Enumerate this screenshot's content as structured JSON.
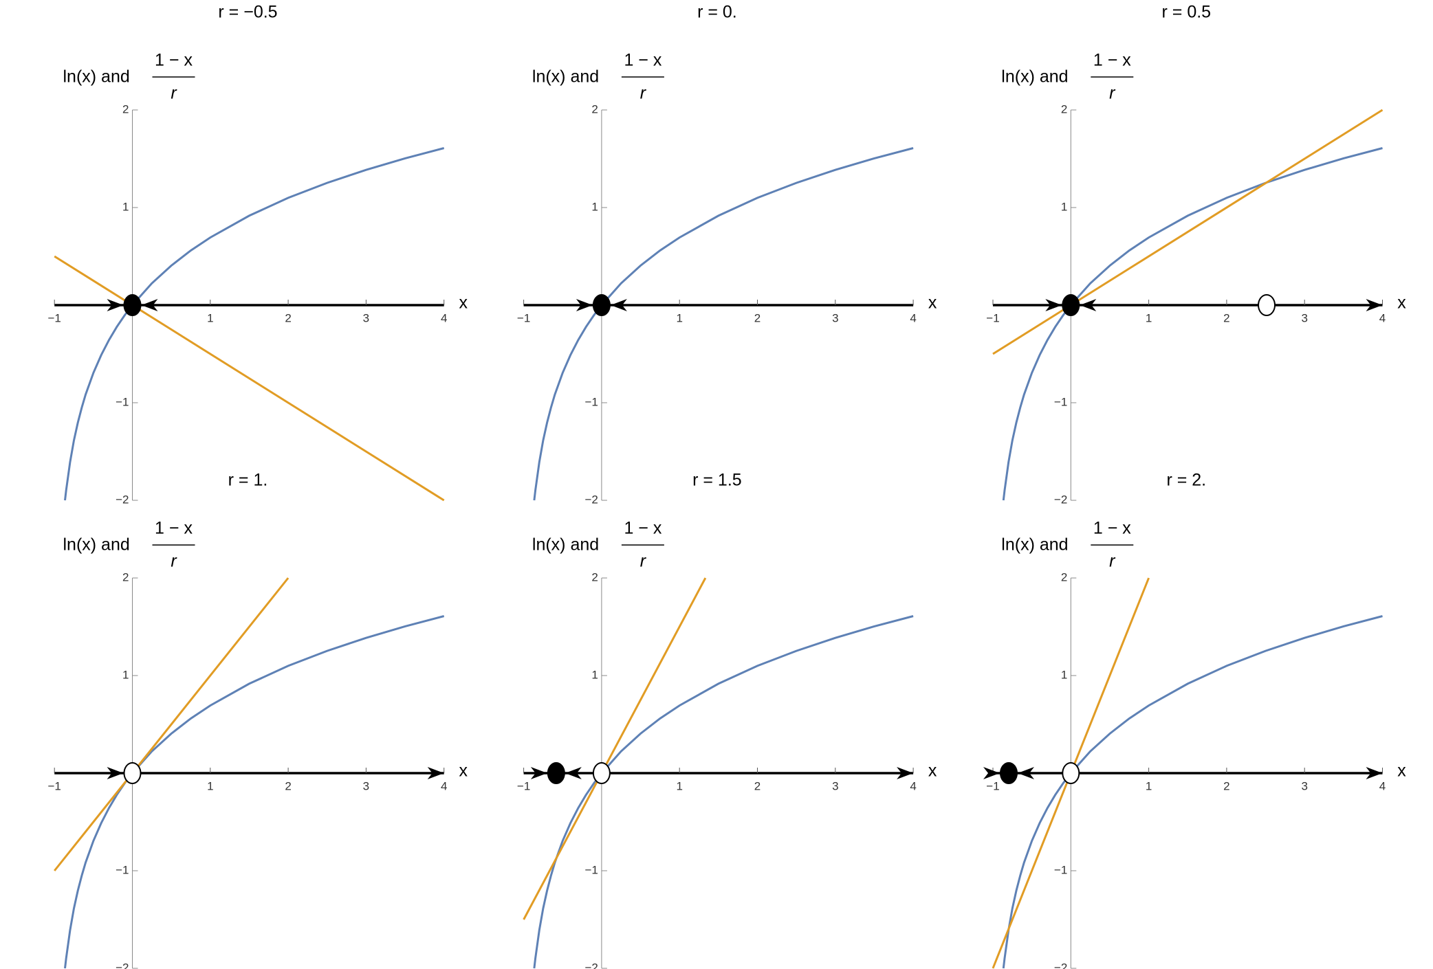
{
  "chart_data": [
    {
      "type": "line",
      "title": "r = −0.5",
      "ylabel_prefix": "ln(x) and",
      "ylabel_numerator": "1 − x",
      "ylabel_denominator": "r",
      "xlabel": "x",
      "xlim": [
        -1,
        4
      ],
      "ylim": [
        -2,
        2
      ],
      "xticks": [
        {
          "value": -1,
          "label": "−1"
        },
        1,
        2,
        3,
        4
      ],
      "yticks": [
        {
          "value": -2,
          "label": "−2"
        },
        {
          "value": -1,
          "label": "−1"
        },
        1,
        2
      ],
      "series": [
        {
          "color": "#5e81b5",
          "x": [
            -0.865,
            -0.85,
            -0.8,
            -0.75,
            -0.7,
            -0.65,
            -0.6,
            -0.5,
            -0.4,
            -0.3,
            -0.2,
            -0.1,
            0,
            0.25,
            0.5,
            0.75,
            1,
            1.5,
            2,
            2.5,
            3,
            3.5,
            4
          ],
          "values": [
            -2.0,
            -1.897,
            -1.609,
            -1.386,
            -1.204,
            -1.05,
            -0.916,
            -0.693,
            -0.511,
            -0.357,
            -0.223,
            -0.105,
            0,
            0.223,
            0.405,
            0.56,
            0.693,
            0.916,
            1.099,
            1.253,
            1.386,
            1.504,
            1.609
          ]
        },
        {
          "color": "#e19c24",
          "x": [
            -1,
            4
          ],
          "values": [
            0.5,
            -2
          ]
        }
      ],
      "points": [
        {
          "x": 0,
          "filled": true
        }
      ],
      "flow": [
        "right",
        "left"
      ]
    },
    {
      "type": "line",
      "title": "r = 0.",
      "ylabel_prefix": "ln(x) and",
      "ylabel_numerator": "1 − x",
      "ylabel_denominator": "r",
      "xlabel": "x",
      "xlim": [
        -1,
        4
      ],
      "ylim": [
        -2,
        2
      ],
      "xticks": [
        {
          "value": -1,
          "label": "−1"
        },
        1,
        2,
        3,
        4
      ],
      "yticks": [
        {
          "value": -2,
          "label": "−2"
        },
        {
          "value": -1,
          "label": "−1"
        },
        1,
        2
      ],
      "series": [
        {
          "color": "#5e81b5",
          "x": [
            -0.865,
            -0.85,
            -0.8,
            -0.75,
            -0.7,
            -0.65,
            -0.6,
            -0.5,
            -0.4,
            -0.3,
            -0.2,
            -0.1,
            0,
            0.25,
            0.5,
            0.75,
            1,
            1.5,
            2,
            2.5,
            3,
            3.5,
            4
          ],
          "values": [
            -2.0,
            -1.897,
            -1.609,
            -1.386,
            -1.204,
            -1.05,
            -0.916,
            -0.693,
            -0.511,
            -0.357,
            -0.223,
            -0.105,
            0,
            0.223,
            0.405,
            0.56,
            0.693,
            0.916,
            1.099,
            1.253,
            1.386,
            1.504,
            1.609
          ]
        },
        {
          "color": "#e19c24",
          "x": [
            -1,
            4
          ],
          "values": [
            0,
            0
          ]
        }
      ],
      "points": [
        {
          "x": 0,
          "filled": true
        }
      ],
      "flow": [
        "right",
        "left"
      ]
    },
    {
      "type": "line",
      "title": "r = 0.5",
      "ylabel_prefix": "ln(x) and",
      "ylabel_numerator": "1 − x",
      "ylabel_denominator": "r",
      "xlabel": "x",
      "xlim": [
        -1,
        4
      ],
      "ylim": [
        -2,
        2
      ],
      "xticks": [
        {
          "value": -1,
          "label": "−1"
        },
        1,
        2,
        3,
        4
      ],
      "yticks": [
        {
          "value": -2,
          "label": "−2"
        },
        {
          "value": -1,
          "label": "−1"
        },
        1,
        2
      ],
      "series": [
        {
          "color": "#5e81b5",
          "x": [
            -0.865,
            -0.85,
            -0.8,
            -0.75,
            -0.7,
            -0.65,
            -0.6,
            -0.5,
            -0.4,
            -0.3,
            -0.2,
            -0.1,
            0,
            0.25,
            0.5,
            0.75,
            1,
            1.5,
            2,
            2.5,
            3,
            3.5,
            4
          ],
          "values": [
            -2.0,
            -1.897,
            -1.609,
            -1.386,
            -1.204,
            -1.05,
            -0.916,
            -0.693,
            -0.511,
            -0.357,
            -0.223,
            -0.105,
            0,
            0.223,
            0.405,
            0.56,
            0.693,
            0.916,
            1.099,
            1.253,
            1.386,
            1.504,
            1.609
          ]
        },
        {
          "color": "#e19c24",
          "x": [
            -1,
            4
          ],
          "values": [
            -0.5,
            2
          ]
        }
      ],
      "points": [
        {
          "x": 0,
          "filled": true
        },
        {
          "x": 2.513,
          "filled": false
        }
      ],
      "flow": [
        "right",
        "left",
        "right"
      ]
    },
    {
      "type": "line",
      "title": "r = 1.",
      "ylabel_prefix": "ln(x) and",
      "ylabel_numerator": "1 − x",
      "ylabel_denominator": "r",
      "xlabel": "x",
      "xlim": [
        -1,
        4
      ],
      "ylim": [
        -2,
        2
      ],
      "xticks": [
        {
          "value": -1,
          "label": "−1"
        },
        1,
        2,
        3,
        4
      ],
      "yticks": [
        {
          "value": -2,
          "label": "−2"
        },
        {
          "value": -1,
          "label": "−1"
        },
        1,
        2
      ],
      "series": [
        {
          "color": "#5e81b5",
          "x": [
            -0.865,
            -0.85,
            -0.8,
            -0.75,
            -0.7,
            -0.65,
            -0.6,
            -0.5,
            -0.4,
            -0.3,
            -0.2,
            -0.1,
            0,
            0.25,
            0.5,
            0.75,
            1,
            1.5,
            2,
            2.5,
            3,
            3.5,
            4
          ],
          "values": [
            -2.0,
            -1.897,
            -1.609,
            -1.386,
            -1.204,
            -1.05,
            -0.916,
            -0.693,
            -0.511,
            -0.357,
            -0.223,
            -0.105,
            0,
            0.223,
            0.405,
            0.56,
            0.693,
            0.916,
            1.099,
            1.253,
            1.386,
            1.504,
            1.609
          ]
        },
        {
          "color": "#e19c24",
          "x": [
            -1,
            2
          ],
          "values": [
            -1,
            2
          ]
        }
      ],
      "points": [
        {
          "x": 0,
          "filled": false
        }
      ],
      "flow": [
        "right",
        "right"
      ]
    },
    {
      "type": "line",
      "title": "r = 1.5",
      "ylabel_prefix": "ln(x) and",
      "ylabel_numerator": "1 − x",
      "ylabel_denominator": "r",
      "xlabel": "x",
      "xlim": [
        -1,
        4
      ],
      "ylim": [
        -2,
        2
      ],
      "xticks": [
        {
          "value": -1,
          "label": "−1"
        },
        1,
        2,
        3,
        4
      ],
      "yticks": [
        {
          "value": -2,
          "label": "−2"
        },
        {
          "value": -1,
          "label": "−1"
        },
        1,
        2
      ],
      "series": [
        {
          "color": "#5e81b5",
          "x": [
            -0.865,
            -0.85,
            -0.8,
            -0.75,
            -0.7,
            -0.65,
            -0.6,
            -0.5,
            -0.4,
            -0.3,
            -0.2,
            -0.1,
            0,
            0.25,
            0.5,
            0.75,
            1,
            1.5,
            2,
            2.5,
            3,
            3.5,
            4
          ],
          "values": [
            -2.0,
            -1.897,
            -1.609,
            -1.386,
            -1.204,
            -1.05,
            -0.916,
            -0.693,
            -0.511,
            -0.357,
            -0.223,
            -0.105,
            0,
            0.223,
            0.405,
            0.56,
            0.693,
            0.916,
            1.099,
            1.253,
            1.386,
            1.504,
            1.609
          ]
        },
        {
          "color": "#e19c24",
          "x": [
            -1,
            1.333
          ],
          "values": [
            -1.5,
            2
          ]
        }
      ],
      "points": [
        {
          "x": -0.583,
          "filled": true
        },
        {
          "x": 0,
          "filled": false
        }
      ],
      "flow": [
        "right",
        "left",
        "right"
      ]
    },
    {
      "type": "line",
      "title": "r = 2.",
      "ylabel_prefix": "ln(x) and",
      "ylabel_numerator": "1 − x",
      "ylabel_denominator": "r",
      "xlabel": "x",
      "xlim": [
        -1,
        4
      ],
      "ylim": [
        -2,
        2
      ],
      "xticks": [
        {
          "value": -1,
          "label": "−1"
        },
        1,
        2,
        3,
        4
      ],
      "yticks": [
        {
          "value": -2,
          "label": "−2"
        },
        {
          "value": -1,
          "label": "−1"
        },
        1,
        2
      ],
      "series": [
        {
          "color": "#5e81b5",
          "x": [
            -0.865,
            -0.85,
            -0.8,
            -0.75,
            -0.7,
            -0.65,
            -0.6,
            -0.5,
            -0.4,
            -0.3,
            -0.2,
            -0.1,
            0,
            0.25,
            0.5,
            0.75,
            1,
            1.5,
            2,
            2.5,
            3,
            3.5,
            4
          ],
          "values": [
            -2.0,
            -1.897,
            -1.609,
            -1.386,
            -1.204,
            -1.05,
            -0.916,
            -0.693,
            -0.511,
            -0.357,
            -0.223,
            -0.105,
            0,
            0.223,
            0.405,
            0.56,
            0.693,
            0.916,
            1.099,
            1.253,
            1.386,
            1.504,
            1.609
          ]
        },
        {
          "color": "#e19c24",
          "x": [
            -1,
            1
          ],
          "values": [
            -2,
            2
          ]
        }
      ],
      "points": [
        {
          "x": -0.797,
          "filled": true
        },
        {
          "x": 0,
          "filled": false
        }
      ],
      "flow": [
        "right",
        "left",
        "right"
      ]
    }
  ]
}
